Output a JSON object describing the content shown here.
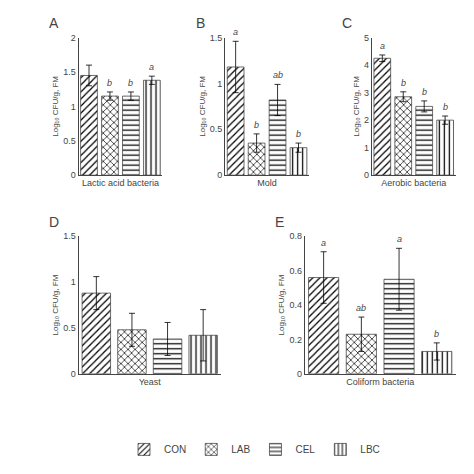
{
  "chart_data": [
    {
      "type": "bar",
      "title": "A",
      "xlabel": "Lactic acid bacteria",
      "ylabel": "Log₁₀ CFU/g, FM",
      "categories": [
        "CON",
        "LAB",
        "CEL",
        "LBC"
      ],
      "values": [
        1.45,
        1.15,
        1.15,
        1.38
      ],
      "errors": [
        0.15,
        0.06,
        0.06,
        0.06
      ],
      "colors": [
        "#aaaaaa",
        "#888888",
        "#cccccc",
        "#e8e8e8"
      ],
      "annotations": [
        {
          "category": "LAB",
          "text": "b"
        },
        {
          "category": "CEL",
          "text": "b"
        },
        {
          "category": "LBC",
          "text": "a"
        }
      ],
      "ylim": [
        0,
        2
      ],
      "yticks": [
        0,
        0.5,
        1,
        1.5,
        2
      ],
      "grid": false,
      "tick_labels": "y",
      "legend": "bottom"
    },
    {
      "type": "bar",
      "title": "B",
      "xlabel": "Mold",
      "ylabel": "Log₁₀ CFU/g, FM",
      "categories": [
        "CON",
        "LAB",
        "CEL",
        "LBC"
      ],
      "values": [
        1.18,
        0.35,
        0.82,
        0.3
      ],
      "errors": [
        0.28,
        0.1,
        0.17,
        0.05
      ],
      "colors": [
        "#aaaaaa",
        "#888888",
        "#cccccc",
        "#e8e8e8"
      ],
      "annotations": [
        {
          "category": "CON",
          "text": "a"
        },
        {
          "category": "LAB",
          "text": "b"
        },
        {
          "category": "CEL",
          "text": "ab"
        },
        {
          "category": "LBC",
          "text": "b"
        }
      ],
      "ylim": [
        0,
        1.5
      ],
      "yticks": [
        0,
        0.5,
        1,
        1.5
      ],
      "grid": false,
      "tick_labels": "y"
    },
    {
      "type": "bar",
      "title": "C",
      "xlabel": "Aerobic bacteria",
      "ylabel": "Log₁₀ CFU/g, FM",
      "categories": [
        "CON",
        "LAB",
        "CEL",
        "LBC"
      ],
      "values": [
        4.25,
        2.85,
        2.5,
        2.0
      ],
      "errors": [
        0.12,
        0.18,
        0.2,
        0.15
      ],
      "colors": [
        "#aaaaaa",
        "#888888",
        "#cccccc",
        "#e8e8e8"
      ],
      "annotations": [
        {
          "category": "CON",
          "text": "a"
        },
        {
          "category": "LAB",
          "text": "b"
        },
        {
          "category": "CEL",
          "text": "b"
        },
        {
          "category": "LBC",
          "text": "b"
        }
      ],
      "ylim": [
        0,
        5
      ],
      "yticks": [
        0,
        1,
        2,
        3,
        4,
        5
      ],
      "grid": false,
      "tick_labels": "y"
    },
    {
      "type": "bar",
      "title": "D",
      "xlabel": "Yeast",
      "ylabel": "Log₁₀ CFU/g, FM",
      "categories": [
        "CON",
        "LAB",
        "CEL",
        "LBC"
      ],
      "values": [
        0.88,
        0.48,
        0.38,
        0.42
      ],
      "errors": [
        0.18,
        0.18,
        0.18,
        0.28
      ],
      "colors": [
        "#aaaaaa",
        "#888888",
        "#cccccc",
        "#e8e8e8"
      ],
      "annotations": [],
      "ylim": [
        0,
        1.5
      ],
      "yticks": [
        0,
        0.5,
        1,
        1.5
      ],
      "grid": false,
      "tick_labels": "y"
    },
    {
      "type": "bar",
      "title": "E",
      "xlabel": "Coliform bacteria",
      "ylabel": "Log₁₀ CFU/g, FM",
      "categories": [
        "CON",
        "LAB",
        "CEL",
        "LBC"
      ],
      "values": [
        0.56,
        0.23,
        0.55,
        0.13
      ],
      "errors": [
        0.15,
        0.1,
        0.18,
        0.05
      ],
      "colors": [
        "#aaaaaa",
        "#888888",
        "#cccccc",
        "#e8e8e8"
      ],
      "annotations": [
        {
          "category": "CON",
          "text": "a"
        },
        {
          "category": "LAB",
          "text": "ab"
        },
        {
          "category": "CEL",
          "text": "a"
        },
        {
          "category": "LBC",
          "text": "b"
        }
      ],
      "ylim": [
        0,
        0.8
      ],
      "yticks": [
        0,
        0.2,
        0.4,
        0.6,
        0.8
      ],
      "grid": false,
      "tick_labels": "y"
    }
  ]
}
